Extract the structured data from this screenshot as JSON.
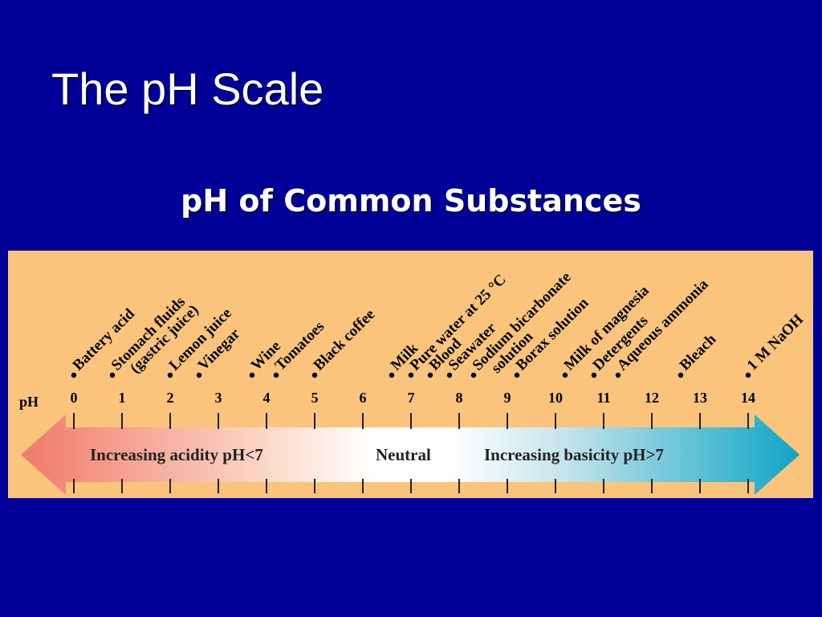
{
  "slide": {
    "title": "The pH Scale",
    "subtitle": "pH of Common Substances"
  },
  "chart_data": {
    "type": "diagram",
    "axis_label": "pH",
    "ticks": [
      "0",
      "1",
      "2",
      "3",
      "4",
      "5",
      "6",
      "7",
      "8",
      "9",
      "10",
      "11",
      "12",
      "13",
      "14"
    ],
    "range": [
      0,
      14
    ],
    "substances": [
      {
        "label": "Battery acid",
        "ph": 0
      },
      {
        "label": "Stomach fluids (gastric juice)",
        "lines": [
          "Stomach fluids",
          "(gastric juice)"
        ],
        "ph": 0.8
      },
      {
        "label": "Lemon juice",
        "ph": 2.0
      },
      {
        "label": "Vinegar",
        "ph": 2.6
      },
      {
        "label": "Wine",
        "ph": 3.7
      },
      {
        "label": "Tomatoes",
        "ph": 4.2
      },
      {
        "label": "Black coffee",
        "ph": 5.0
      },
      {
        "label": "Milk",
        "ph": 6.6
      },
      {
        "label": "Pure water at 25 °C",
        "ph": 7.0
      },
      {
        "label": "Blood",
        "ph": 7.4
      },
      {
        "label": "Seawater",
        "ph": 7.8
      },
      {
        "label": "Sodium bicarbonate solution",
        "lines": [
          "Sodium bicarbonate",
          "solution"
        ],
        "ph": 8.3
      },
      {
        "label": "Borax solution",
        "ph": 9.2
      },
      {
        "label": "Milk of magnesia",
        "ph": 10.2
      },
      {
        "label": "Detergents",
        "ph": 10.8
      },
      {
        "label": "Aqueous ammonia",
        "ph": 11.3
      },
      {
        "label": "Bleach",
        "ph": 12.6
      },
      {
        "label": "1 M NaOH",
        "ph": 14.0
      }
    ],
    "arrow": {
      "acid_text": "Increasing acidity pH<7",
      "neutral_text": "Neutral",
      "base_text": "Increasing basicity pH>7",
      "acid_color": "#f07a6a",
      "base_color": "#0ea5c4"
    }
  }
}
